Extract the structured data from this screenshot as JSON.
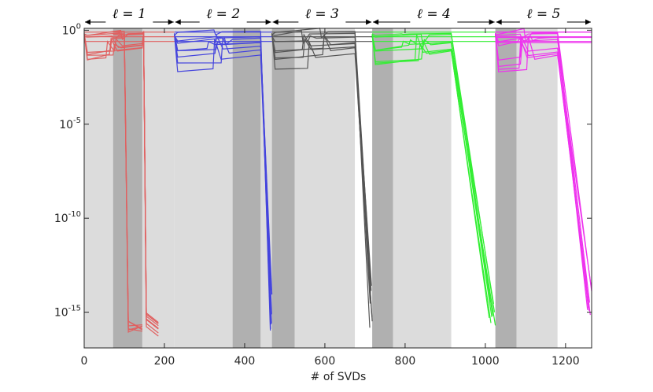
{
  "chart_data": {
    "type": "line",
    "title": "",
    "xlabel": "# of SVDs",
    "ylabel": "",
    "xlim": [
      0,
      1265
    ],
    "ylim_log10": [
      -16.9,
      0.1
    ],
    "yscale": "log",
    "x_ticks": [
      0,
      200,
      400,
      600,
      800,
      1000,
      1200
    ],
    "y_ticks": [
      {
        "base": "10",
        "exp": "0",
        "value_log10": 0
      },
      {
        "base": "10",
        "exp": "-5",
        "value_log10": -5
      },
      {
        "base": "10",
        "exp": "-10",
        "value_log10": -10
      },
      {
        "base": "10",
        "exp": "-15",
        "value_log10": -15
      }
    ],
    "grid": false,
    "segments": [
      {
        "label": "ℓ = 1",
        "x_start": 0,
        "x_end": 225,
        "color": "#e06060",
        "light": [
          0,
          72
        ],
        "dark": [
          72,
          145
        ],
        "light2": [
          145,
          225
        ],
        "decay": [
          145,
          190
        ]
      },
      {
        "label": "ℓ = 2",
        "x_start": 225,
        "x_end": 468,
        "color": "#4444dd",
        "light": [
          225,
          370
        ],
        "dark": [
          370,
          440
        ],
        "light2": [
          440,
          468
        ],
        "decay": [
          440,
          468
        ]
      },
      {
        "label": "ℓ = 3",
        "x_start": 468,
        "x_end": 718,
        "color": "#555555",
        "light": [
          468,
          525
        ],
        "dark": [
          468,
          525
        ],
        "light2": [
          525,
          675
        ],
        "decay": [
          675,
          718
        ]
      },
      {
        "label": "ℓ = 4",
        "x_start": 718,
        "x_end": 1025,
        "color": "#33ee33",
        "light": [
          718,
          770
        ],
        "dark": [
          718,
          770
        ],
        "light2": [
          770,
          915
        ],
        "decay": [
          915,
          1025
        ]
      },
      {
        "label": "ℓ = 5",
        "x_start": 1025,
        "x_end": 1265,
        "color": "#ee33ee",
        "light": [
          1025,
          1078
        ],
        "dark": [
          1025,
          1078
        ],
        "light2": [
          1078,
          1180
        ],
        "decay": [
          1180,
          1265
        ]
      }
    ],
    "series_count_per_segment": 8
  }
}
